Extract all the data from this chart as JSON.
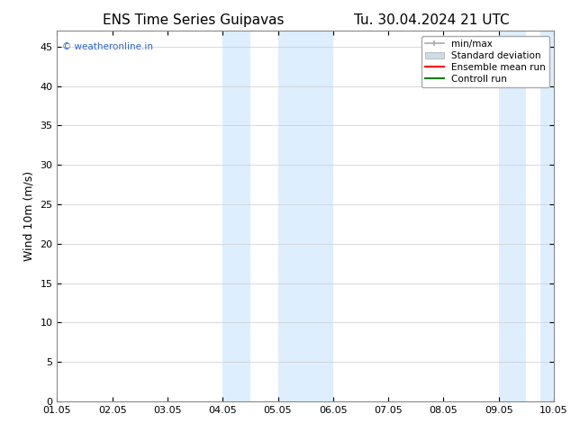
{
  "title_left": "ENS Time Series Guipavas",
  "title_right": "Tu. 30.04.2024 21 UTC",
  "ylabel": "Wind 10m (m/s)",
  "xlim_start": 0,
  "xlim_end": 9,
  "ylim": [
    0,
    47
  ],
  "yticks": [
    0,
    5,
    10,
    15,
    20,
    25,
    30,
    35,
    40,
    45
  ],
  "xtick_labels": [
    "01.05",
    "02.05",
    "03.05",
    "04.05",
    "05.05",
    "06.05",
    "07.05",
    "08.05",
    "09.05",
    "10.05"
  ],
  "xtick_positions": [
    0,
    1,
    2,
    3,
    4,
    5,
    6,
    7,
    8,
    9
  ],
  "shaded_regions": [
    [
      3.0,
      3.5
    ],
    [
      4.0,
      5.0
    ],
    [
      8.0,
      8.5
    ],
    [
      8.75,
      9.0
    ]
  ],
  "shade_color": "#ddeeff",
  "watermark_text": "© weatheronline.in",
  "watermark_color": "#3366cc",
  "legend_items": [
    {
      "label": "min/max",
      "color": "#aaaaaa",
      "lw": 1.2
    },
    {
      "label": "Standard deviation",
      "color": "#ccdde8",
      "lw": 6
    },
    {
      "label": "Ensemble mean run",
      "color": "red",
      "lw": 1.5
    },
    {
      "label": "Controll run",
      "color": "green",
      "lw": 1.5
    }
  ],
  "bg_color": "#ffffff",
  "plot_bg_color": "#ffffff",
  "title_fontsize": 11,
  "tick_fontsize": 8,
  "ylabel_fontsize": 9
}
